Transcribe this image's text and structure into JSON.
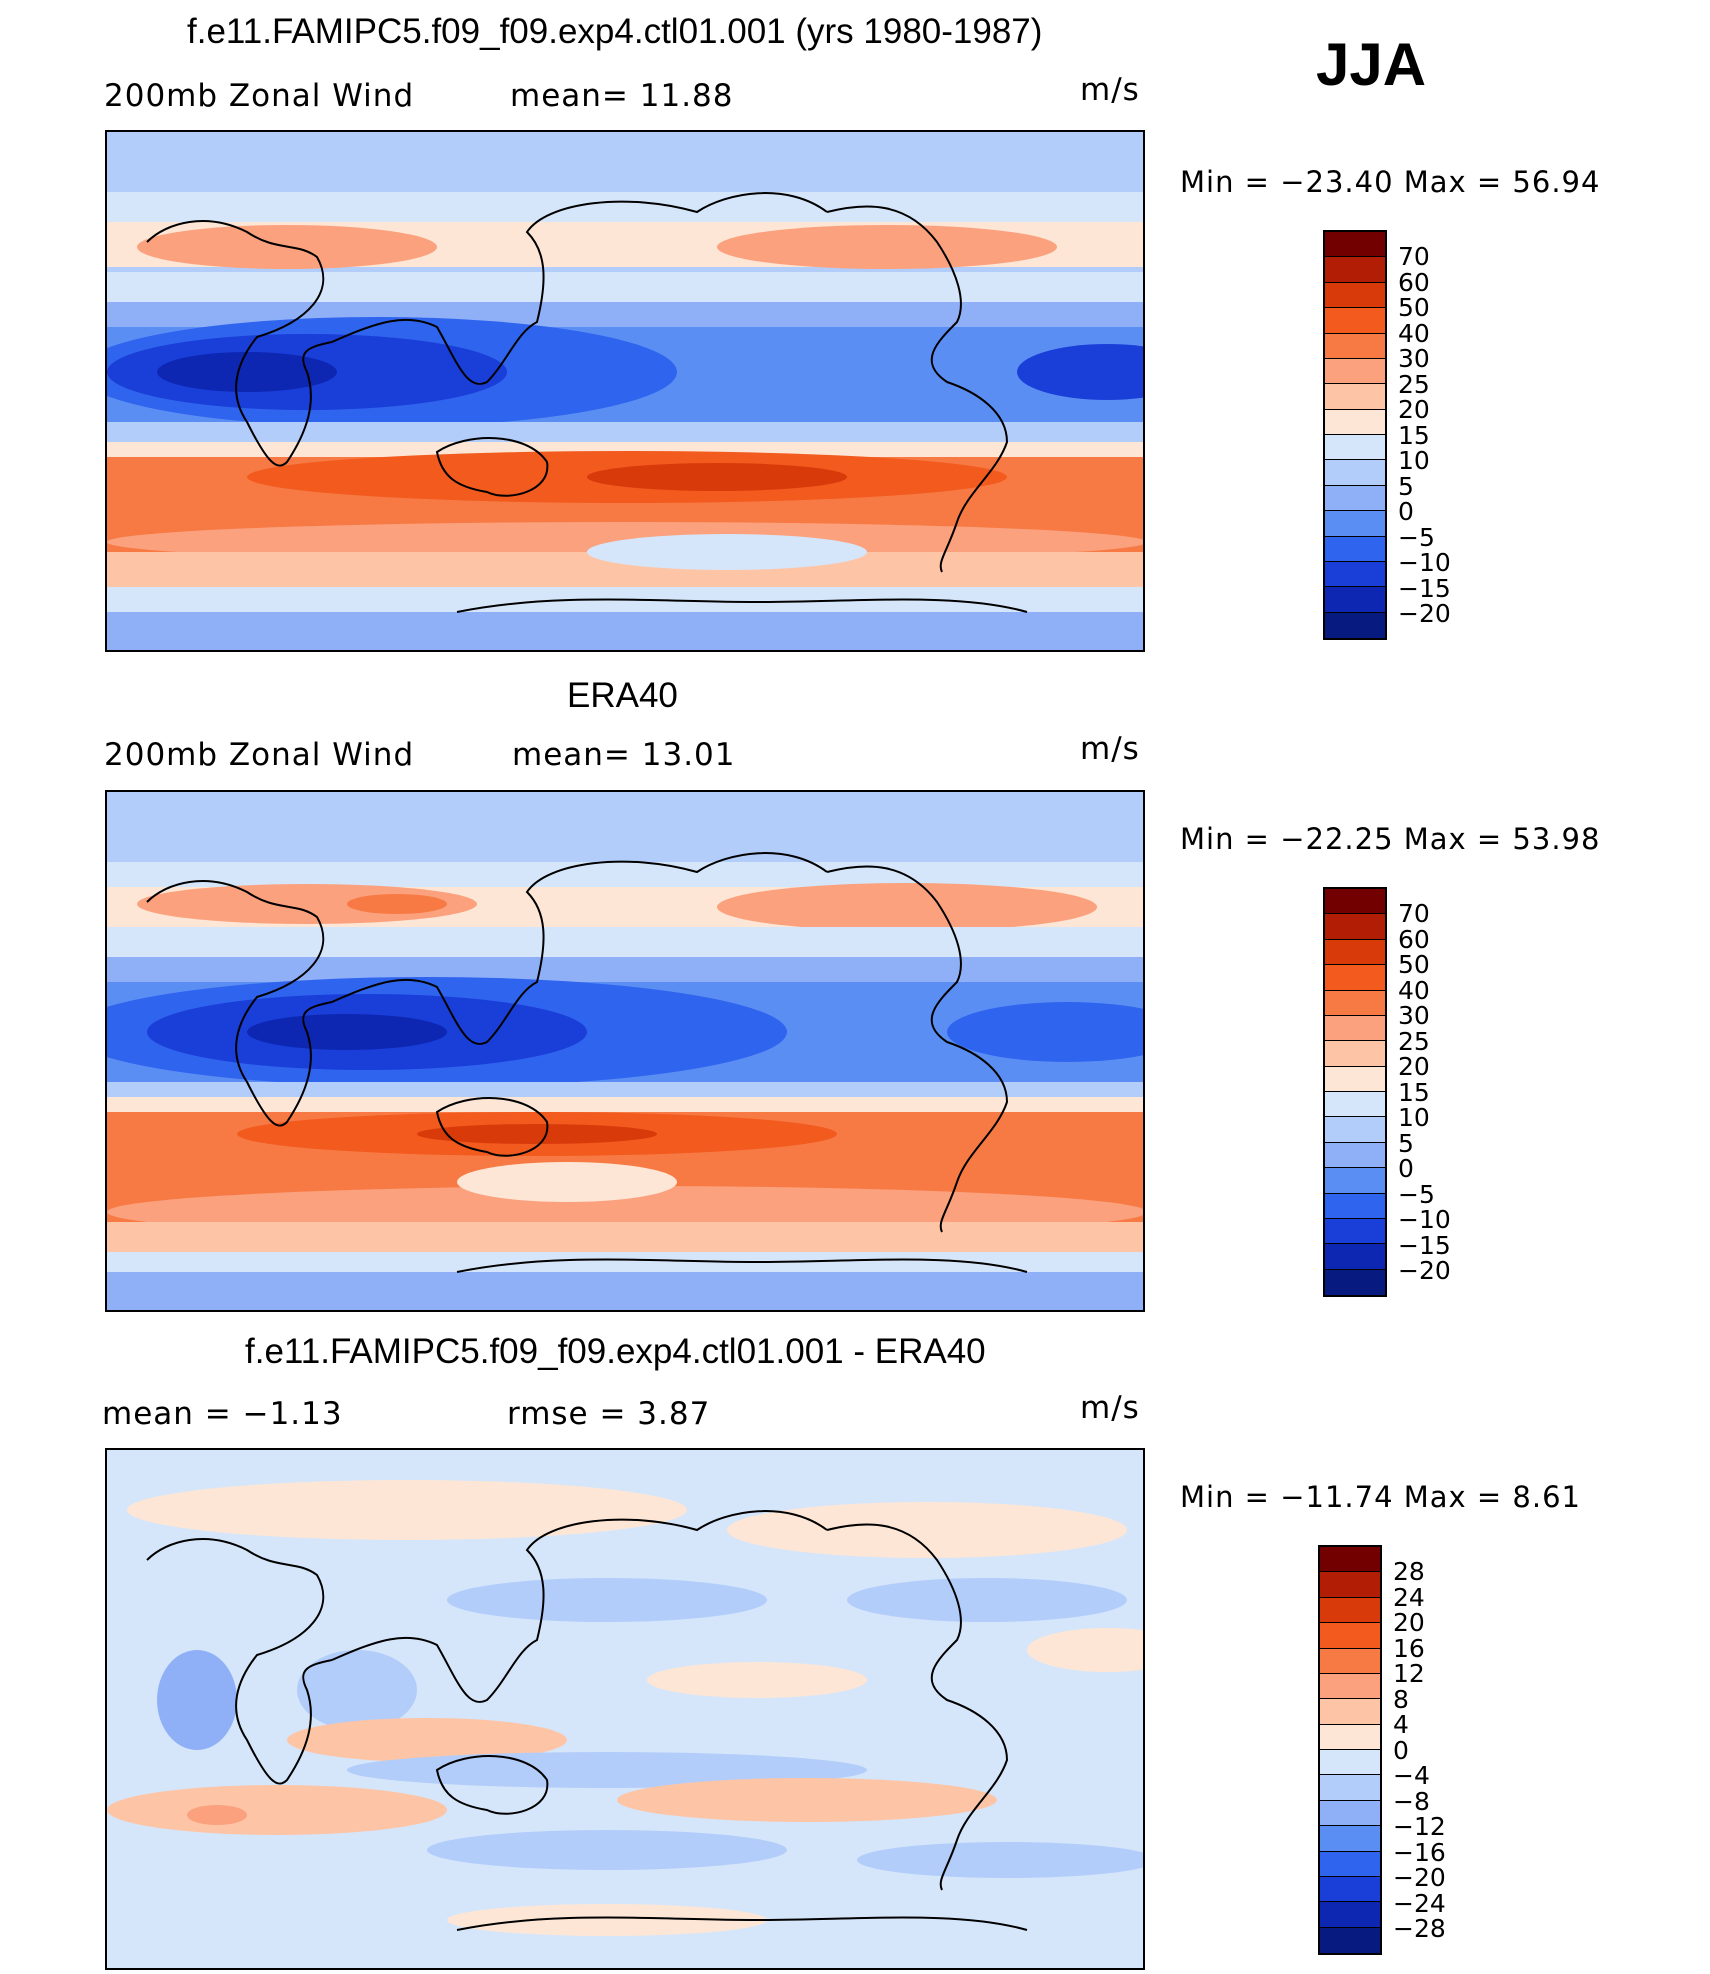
{
  "season": "JJA",
  "units": "m/s",
  "panels": [
    {
      "title": "f.e11.FAMIPC5.f09_f09.exp4.ctl01.001 (yrs 1980-1987)",
      "left_label": "200mb  Zonal  Wind",
      "mid_label": "mean=   11.88",
      "units": "m/s",
      "minmax": "Min  =  −23.40  Max  =    56.94",
      "levels": [
        "70",
        "60",
        "50",
        "40",
        "30",
        "25",
        "20",
        "15",
        "10",
        "5",
        "0",
        "−5",
        "−10",
        "−15",
        "−20"
      ]
    },
    {
      "title": "ERA40",
      "left_label": "200mb  Zonal  Wind",
      "mid_label": "mean=   13.01",
      "units": "m/s",
      "minmax": "Min  =  −22.25  Max  =    53.98",
      "levels": [
        "70",
        "60",
        "50",
        "40",
        "30",
        "25",
        "20",
        "15",
        "10",
        "5",
        "0",
        "−5",
        "−10",
        "−15",
        "−20"
      ]
    },
    {
      "title": "f.e11.FAMIPC5.f09_f09.exp4.ctl01.001 - ERA40",
      "left_label": "mean  =    −1.13",
      "mid_label": "rmse  =     3.87",
      "units": "m/s",
      "minmax": "Min  =  −11.74  Max  =    8.61",
      "levels": [
        "28",
        "24",
        "20",
        "16",
        "12",
        "8",
        "4",
        "0",
        "−4",
        "−8",
        "−12",
        "−16",
        "−20",
        "−24",
        "−28"
      ]
    }
  ],
  "colors": {
    "scale": [
      "#730000",
      "#b21e05",
      "#d93a0a",
      "#f25a1e",
      "#f77a45",
      "#fba17e",
      "#fdc5a6",
      "#fde6d5",
      "#d5e6fb",
      "#b3cdfa",
      "#8fb0f7",
      "#5b8ef3",
      "#2f64ee",
      "#1a3fd9",
      "#0d27b3",
      "#071a80"
    ],
    "map_land_line": "#000000"
  }
}
